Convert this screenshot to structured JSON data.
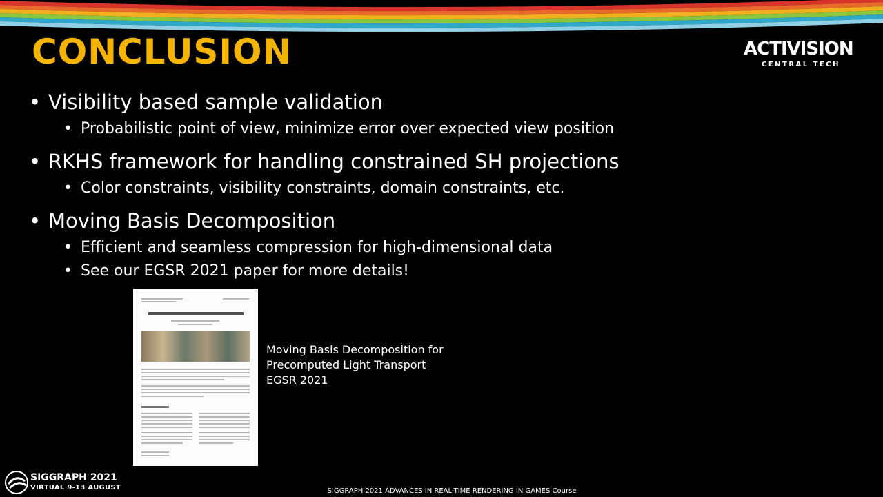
{
  "slide": {
    "title": "CONCLUSION",
    "logo": {
      "main": "ACTIVISION",
      "sub": "CENTRAL TECH"
    },
    "bullets": [
      {
        "text": "Visibility based sample validation",
        "sub": [
          "Probabilistic point of view, minimize error over expected view position"
        ]
      },
      {
        "text": "RKHS framework for handling constrained SH projections",
        "sub": [
          "Color constraints, visibility constraints, domain constraints, etc."
        ]
      },
      {
        "text": "Moving Basis Decomposition",
        "sub": [
          "Efficient and seamless compression for high-dimensional data",
          "See our EGSR 2021 paper for more details!"
        ]
      }
    ],
    "caption": {
      "line1": "Moving Basis Decomposition for",
      "line2": "Precomputed Light Transport",
      "line3": "EGSR 2021"
    },
    "footer": {
      "event": "SIGGRAPH 2021",
      "event_sub": "VIRTUAL  9-13 AUGUST",
      "course": "SIGGRAPH 2021 ADVANCES IN REAL-TIME RENDERING IN GAMES Course"
    },
    "colors": {
      "title": "#f4b400",
      "stripes": [
        "#d9342b",
        "#e86a2a",
        "#f2b01e",
        "#8cc63f",
        "#2fa8c9",
        "#8fd0e6"
      ]
    }
  }
}
